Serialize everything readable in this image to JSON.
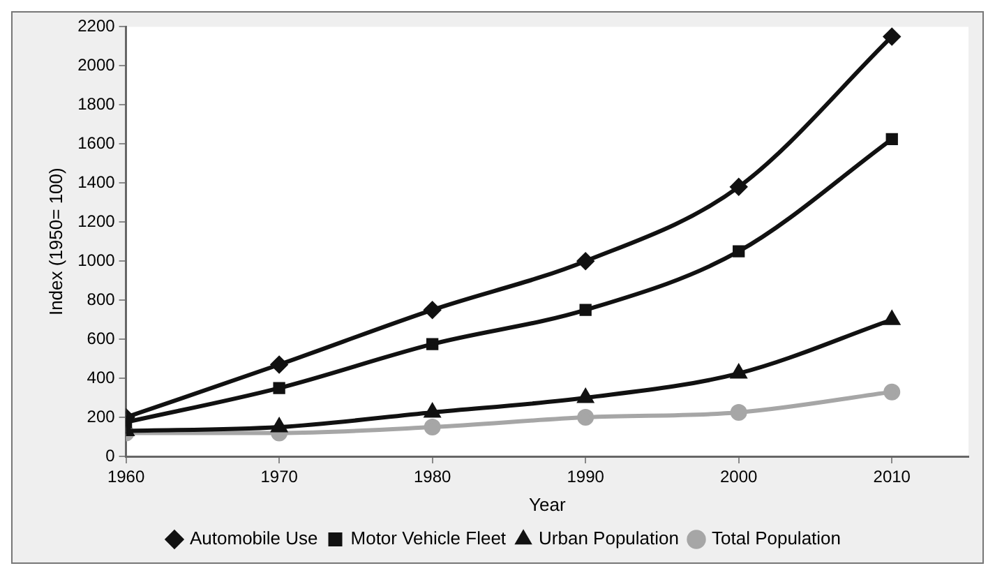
{
  "chart_data": {
    "type": "line",
    "xlabel": "Year",
    "ylabel": "Index (1950= 100)",
    "x": [
      1960,
      1970,
      1980,
      1990,
      2000,
      2010
    ],
    "xlim": [
      1960,
      2015
    ],
    "xticks": [
      1960,
      1970,
      1980,
      1990,
      2000,
      2010
    ],
    "ylim": [
      0,
      2200
    ],
    "yticks": [
      0,
      200,
      400,
      600,
      800,
      1000,
      1200,
      1400,
      1600,
      1800,
      2000,
      2200
    ],
    "grid": false,
    "legend": "bottom",
    "line_style": "solid",
    "series": [
      {
        "name": "Automobile Use",
        "color": "#111111",
        "marker": "diamond",
        "values": [
          200,
          470,
          750,
          1000,
          1380,
          2150
        ]
      },
      {
        "name": "Motor Vehicle Fleet",
        "color": "#111111",
        "marker": "square",
        "values": [
          175,
          350,
          575,
          750,
          1050,
          1625
        ]
      },
      {
        "name": "Urban Population",
        "color": "#111111",
        "marker": "triangle",
        "values": [
          130,
          150,
          225,
          300,
          425,
          700
        ]
      },
      {
        "name": "Total Population",
        "color": "#a6a6a6",
        "marker": "circle",
        "values": [
          120,
          120,
          150,
          200,
          225,
          330
        ]
      }
    ]
  }
}
